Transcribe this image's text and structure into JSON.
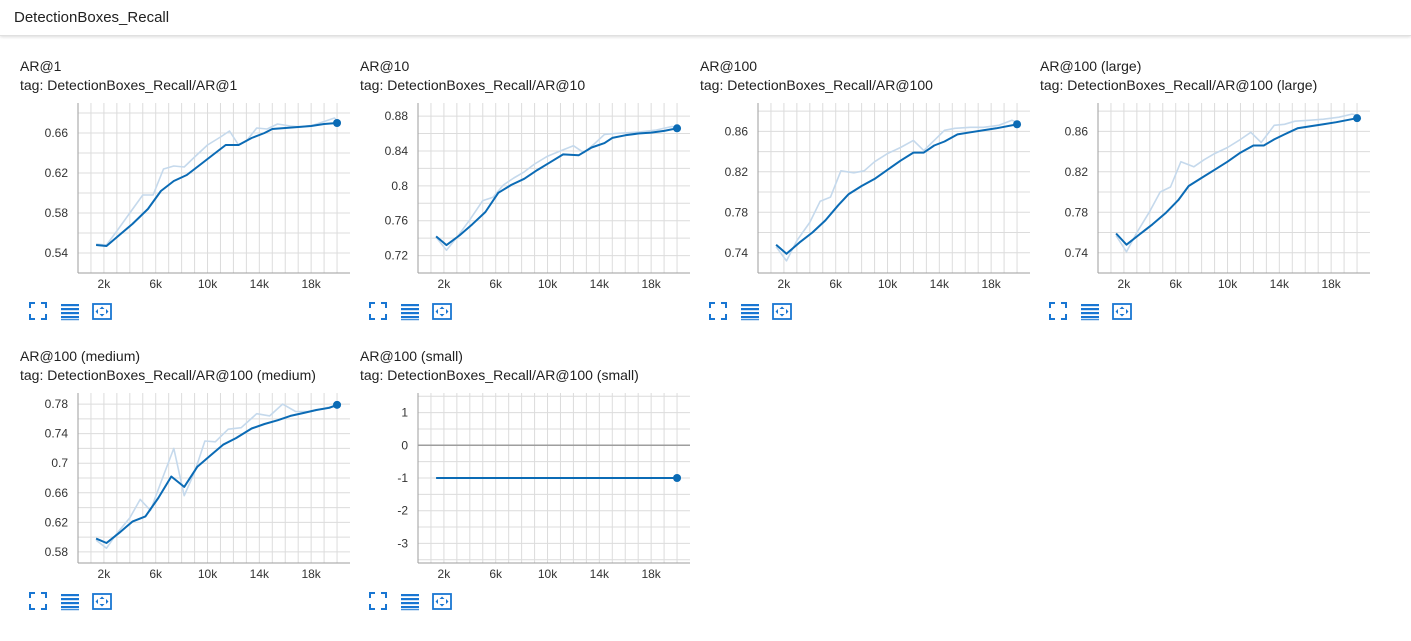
{
  "section": {
    "title": "DetectionBoxes_Recall"
  },
  "colors": {
    "smoothed": "#0b6bb5",
    "raw": "#c5d9ec",
    "grid": "#dcdcdc",
    "axis": "#9e9e9e",
    "icon": "#1976d2"
  },
  "icons": [
    "fullscreen-icon",
    "toggle-log-scale-icon",
    "fit-domain-icon"
  ],
  "chart_data": [
    {
      "type": "line",
      "title": "AR@1",
      "tag": "tag: DetectionBoxes_Recall/AR@1",
      "xlim": [
        0,
        21000
      ],
      "ylim": [
        0.52,
        0.69
      ],
      "xticks": [
        2000,
        6000,
        10000,
        14000,
        18000
      ],
      "xtick_labels": [
        "2k",
        "6k",
        "10k",
        "14k",
        "18k"
      ],
      "yticks": [
        0.54,
        0.58,
        0.62,
        0.66
      ],
      "ytick_labels": [
        "0.54",
        "0.58",
        "0.62",
        "0.66"
      ],
      "series": [
        {
          "values": [
            [
              1400,
              0.549
            ],
            [
              2200,
              0.548
            ],
            [
              3000,
              0.562
            ],
            [
              4000,
              0.58
            ],
            [
              5000,
              0.598
            ],
            [
              5800,
              0.598
            ],
            [
              6600,
              0.624
            ],
            [
              7400,
              0.627
            ],
            [
              8200,
              0.626
            ],
            [
              9000,
              0.636
            ],
            [
              10000,
              0.648
            ],
            [
              11000,
              0.656
            ],
            [
              11700,
              0.662
            ],
            [
              12400,
              0.648
            ],
            [
              13000,
              0.652
            ],
            [
              13800,
              0.665
            ],
            [
              14600,
              0.664
            ],
            [
              15400,
              0.669
            ],
            [
              16400,
              0.667
            ],
            [
              17200,
              0.666
            ],
            [
              18200,
              0.668
            ],
            [
              19800,
              0.675
            ],
            [
              20000,
              0.672
            ]
          ]
        },
        {
          "values": [
            [
              1400,
              0.548
            ],
            [
              2200,
              0.547
            ],
            [
              3200,
              0.558
            ],
            [
              4200,
              0.569
            ],
            [
              5400,
              0.584
            ],
            [
              6400,
              0.602
            ],
            [
              7400,
              0.612
            ],
            [
              8400,
              0.618
            ],
            [
              9400,
              0.628
            ],
            [
              10400,
              0.638
            ],
            [
              11400,
              0.648
            ],
            [
              12400,
              0.648
            ],
            [
              13400,
              0.655
            ],
            [
              14400,
              0.66
            ],
            [
              15000,
              0.664
            ],
            [
              16000,
              0.665
            ],
            [
              17000,
              0.666
            ],
            [
              18000,
              0.667
            ],
            [
              19000,
              0.669
            ],
            [
              20000,
              0.67
            ]
          ]
        }
      ]
    },
    {
      "type": "line",
      "title": "AR@10",
      "tag": "tag: DetectionBoxes_Recall/AR@10",
      "xlim": [
        0,
        21000
      ],
      "ylim": [
        0.7,
        0.895
      ],
      "xticks": [
        2000,
        6000,
        10000,
        14000,
        18000
      ],
      "xtick_labels": [
        "2k",
        "6k",
        "10k",
        "14k",
        "18k"
      ],
      "yticks": [
        0.72,
        0.76,
        0.8,
        0.84,
        0.88
      ],
      "ytick_labels": [
        "0.72",
        "0.76",
        "0.8",
        "0.84",
        "0.88"
      ],
      "series": [
        {
          "values": [
            [
              1400,
              0.741
            ],
            [
              2200,
              0.726
            ],
            [
              3000,
              0.741
            ],
            [
              4000,
              0.761
            ],
            [
              5000,
              0.783
            ],
            [
              5800,
              0.787
            ],
            [
              6600,
              0.801
            ],
            [
              7400,
              0.809
            ],
            [
              8200,
              0.816
            ],
            [
              9000,
              0.825
            ],
            [
              10000,
              0.834
            ],
            [
              11000,
              0.84
            ],
            [
              12000,
              0.846
            ],
            [
              12800,
              0.838
            ],
            [
              13600,
              0.848
            ],
            [
              14400,
              0.859
            ],
            [
              15200,
              0.86
            ],
            [
              16400,
              0.861
            ],
            [
              17200,
              0.862
            ],
            [
              18400,
              0.864
            ],
            [
              19600,
              0.868
            ],
            [
              20000,
              0.867
            ]
          ]
        },
        {
          "values": [
            [
              1400,
              0.742
            ],
            [
              2200,
              0.732
            ],
            [
              3200,
              0.743
            ],
            [
              4200,
              0.756
            ],
            [
              5200,
              0.77
            ],
            [
              6200,
              0.792
            ],
            [
              7200,
              0.801
            ],
            [
              8200,
              0.808
            ],
            [
              9200,
              0.818
            ],
            [
              10200,
              0.827
            ],
            [
              11200,
              0.836
            ],
            [
              12400,
              0.835
            ],
            [
              13400,
              0.844
            ],
            [
              14400,
              0.849
            ],
            [
              15000,
              0.855
            ],
            [
              16000,
              0.858
            ],
            [
              17000,
              0.86
            ],
            [
              18000,
              0.861
            ],
            [
              19000,
              0.863
            ],
            [
              20000,
              0.866
            ]
          ]
        }
      ]
    },
    {
      "type": "line",
      "title": "AR@100",
      "tag": "tag: DetectionBoxes_Recall/AR@100",
      "xlim": [
        0,
        21000
      ],
      "ylim": [
        0.72,
        0.888
      ],
      "xticks": [
        2000,
        6000,
        10000,
        14000,
        18000
      ],
      "xtick_labels": [
        "2k",
        "6k",
        "10k",
        "14k",
        "18k"
      ],
      "yticks": [
        0.74,
        0.78,
        0.82,
        0.86
      ],
      "ytick_labels": [
        "0.74",
        "0.78",
        "0.82",
        "0.86"
      ],
      "series": [
        {
          "values": [
            [
              1400,
              0.746
            ],
            [
              2200,
              0.732
            ],
            [
              3000,
              0.752
            ],
            [
              4000,
              0.77
            ],
            [
              4800,
              0.791
            ],
            [
              5600,
              0.795
            ],
            [
              6400,
              0.821
            ],
            [
              7400,
              0.819
            ],
            [
              8200,
              0.821
            ],
            [
              9000,
              0.83
            ],
            [
              10000,
              0.838
            ],
            [
              11000,
              0.844
            ],
            [
              12000,
              0.851
            ],
            [
              12800,
              0.841
            ],
            [
              13600,
              0.851
            ],
            [
              14400,
              0.861
            ],
            [
              15200,
              0.863
            ],
            [
              16400,
              0.864
            ],
            [
              17400,
              0.864
            ],
            [
              18600,
              0.866
            ],
            [
              19600,
              0.871
            ],
            [
              20000,
              0.869
            ]
          ]
        },
        {
          "values": [
            [
              1400,
              0.748
            ],
            [
              2200,
              0.739
            ],
            [
              3200,
              0.75
            ],
            [
              4200,
              0.76
            ],
            [
              5200,
              0.772
            ],
            [
              6200,
              0.787
            ],
            [
              7000,
              0.798
            ],
            [
              8000,
              0.806
            ],
            [
              9000,
              0.813
            ],
            [
              10000,
              0.822
            ],
            [
              11000,
              0.831
            ],
            [
              12000,
              0.839
            ],
            [
              12800,
              0.839
            ],
            [
              13600,
              0.846
            ],
            [
              14400,
              0.85
            ],
            [
              15400,
              0.857
            ],
            [
              16400,
              0.859
            ],
            [
              17400,
              0.861
            ],
            [
              18400,
              0.863
            ],
            [
              20000,
              0.867
            ]
          ]
        }
      ]
    },
    {
      "type": "line",
      "title": "AR@100 (large)",
      "tag": "tag: DetectionBoxes_Recall/AR@100 (large)",
      "xlim": [
        0,
        21000
      ],
      "ylim": [
        0.72,
        0.888
      ],
      "xticks": [
        2000,
        6000,
        10000,
        14000,
        18000
      ],
      "xtick_labels": [
        "2k",
        "6k",
        "10k",
        "14k",
        "18k"
      ],
      "yticks": [
        0.74,
        0.78,
        0.82,
        0.86
      ],
      "ytick_labels": [
        "0.74",
        "0.78",
        "0.82",
        "0.86"
      ],
      "series": [
        {
          "values": [
            [
              1400,
              0.757
            ],
            [
              2200,
              0.741
            ],
            [
              3000,
              0.76
            ],
            [
              4000,
              0.781
            ],
            [
              4800,
              0.8
            ],
            [
              5600,
              0.805
            ],
            [
              6400,
              0.83
            ],
            [
              7400,
              0.825
            ],
            [
              8200,
              0.832
            ],
            [
              9000,
              0.838
            ],
            [
              10000,
              0.844
            ],
            [
              11000,
              0.852
            ],
            [
              11800,
              0.859
            ],
            [
              12600,
              0.849
            ],
            [
              13600,
              0.866
            ],
            [
              14400,
              0.867
            ],
            [
              15200,
              0.87
            ],
            [
              16400,
              0.871
            ],
            [
              17400,
              0.872
            ],
            [
              18600,
              0.874
            ],
            [
              19600,
              0.877
            ],
            [
              20000,
              0.876
            ]
          ]
        },
        {
          "values": [
            [
              1400,
              0.759
            ],
            [
              2200,
              0.748
            ],
            [
              3200,
              0.758
            ],
            [
              4200,
              0.768
            ],
            [
              5200,
              0.779
            ],
            [
              6200,
              0.792
            ],
            [
              7000,
              0.806
            ],
            [
              8000,
              0.814
            ],
            [
              9000,
              0.822
            ],
            [
              10000,
              0.83
            ],
            [
              11000,
              0.839
            ],
            [
              12000,
              0.846
            ],
            [
              12800,
              0.846
            ],
            [
              13600,
              0.852
            ],
            [
              14400,
              0.857
            ],
            [
              15400,
              0.863
            ],
            [
              16400,
              0.865
            ],
            [
              17400,
              0.867
            ],
            [
              18400,
              0.869
            ],
            [
              20000,
              0.873
            ]
          ]
        }
      ]
    },
    {
      "type": "line",
      "title": "AR@100 (medium)",
      "tag": "tag: DetectionBoxes_Recall/AR@100 (medium)",
      "xlim": [
        0,
        21000
      ],
      "ylim": [
        0.565,
        0.795
      ],
      "xticks": [
        2000,
        6000,
        10000,
        14000,
        18000
      ],
      "xtick_labels": [
        "2k",
        "6k",
        "10k",
        "14k",
        "18k"
      ],
      "yticks": [
        0.58,
        0.62,
        0.66,
        0.7,
        0.74,
        0.78
      ],
      "ytick_labels": [
        "0.58",
        "0.62",
        "0.66",
        "0.7",
        "0.74",
        "0.78"
      ],
      "series": [
        {
          "values": [
            [
              1400,
              0.596
            ],
            [
              2200,
              0.585
            ],
            [
              3000,
              0.605
            ],
            [
              4000,
              0.626
            ],
            [
              4800,
              0.651
            ],
            [
              5600,
              0.636
            ],
            [
              6400,
              0.674
            ],
            [
              7400,
              0.72
            ],
            [
              8200,
              0.656
            ],
            [
              9000,
              0.688
            ],
            [
              9800,
              0.73
            ],
            [
              10600,
              0.729
            ],
            [
              11600,
              0.746
            ],
            [
              12600,
              0.748
            ],
            [
              13800,
              0.767
            ],
            [
              14800,
              0.764
            ],
            [
              15800,
              0.78
            ],
            [
              16800,
              0.77
            ],
            [
              18000,
              0.77
            ],
            [
              19400,
              0.776
            ],
            [
              20000,
              0.776
            ]
          ]
        },
        {
          "values": [
            [
              1400,
              0.598
            ],
            [
              2200,
              0.592
            ],
            [
              3200,
              0.606
            ],
            [
              4200,
              0.621
            ],
            [
              5200,
              0.628
            ],
            [
              6200,
              0.653
            ],
            [
              7200,
              0.682
            ],
            [
              8200,
              0.668
            ],
            [
              9200,
              0.695
            ],
            [
              10200,
              0.71
            ],
            [
              11200,
              0.725
            ],
            [
              12200,
              0.734
            ],
            [
              13400,
              0.747
            ],
            [
              14400,
              0.753
            ],
            [
              15400,
              0.758
            ],
            [
              16400,
              0.764
            ],
            [
              17400,
              0.768
            ],
            [
              18400,
              0.772
            ],
            [
              19400,
              0.775
            ],
            [
              20000,
              0.779
            ]
          ]
        }
      ]
    },
    {
      "type": "line",
      "title": "AR@100 (small)",
      "tag": "tag: DetectionBoxes_Recall/AR@100 (small)",
      "xlim": [
        0,
        21000
      ],
      "ylim": [
        -3.6,
        1.6
      ],
      "xticks": [
        2000,
        6000,
        10000,
        14000,
        18000
      ],
      "xtick_labels": [
        "2k",
        "6k",
        "10k",
        "14k",
        "18k"
      ],
      "yticks": [
        1,
        0,
        -1,
        -2,
        -3
      ],
      "ytick_labels": [
        "1",
        "0",
        "-1",
        "-2",
        "-3"
      ],
      "zero_line": true,
      "series": [
        {
          "values": [
            [
              1400,
              -1
            ],
            [
              20000,
              -1
            ]
          ]
        },
        {
          "values": [
            [
              1400,
              -1
            ],
            [
              20000,
              -1
            ]
          ]
        }
      ]
    }
  ]
}
